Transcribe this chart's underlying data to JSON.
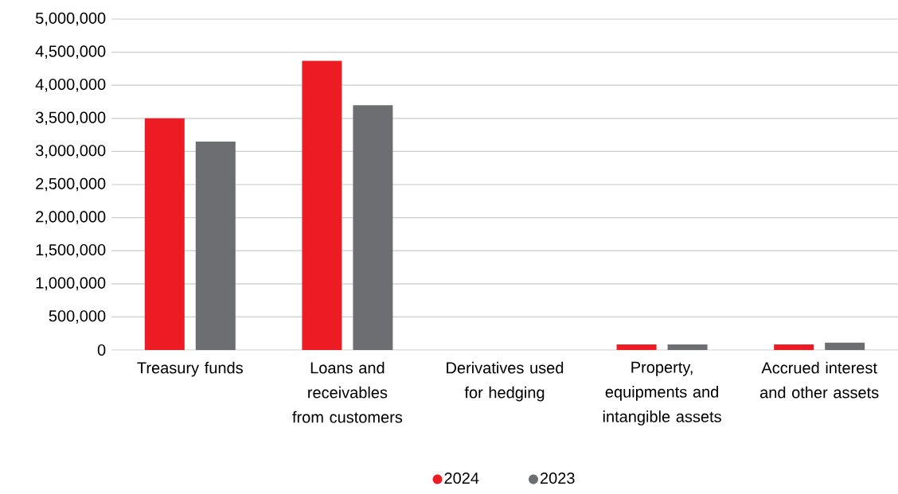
{
  "chart_data": {
    "type": "bar",
    "categories": [
      "Treasury funds",
      "Loans and receivables from customers",
      "Derivatives used for hedging",
      "Property, equipments and intangible assets",
      "Accrued interest and other assets"
    ],
    "series": [
      {
        "name": "2024",
        "color": "#ed1c24",
        "values": [
          3500000,
          4370000,
          0,
          85000,
          85000
        ]
      },
      {
        "name": "2023",
        "color": "#6d6e71",
        "values": [
          3150000,
          3700000,
          0,
          85000,
          110000
        ]
      }
    ],
    "ylim": [
      0,
      5000000
    ],
    "yticks": [
      {
        "value": 0,
        "label": "0"
      },
      {
        "value": 500000,
        "label": "500,000"
      },
      {
        "value": 1000000,
        "label": "1,000,000"
      },
      {
        "value": 1500000,
        "label": "1,500,000"
      },
      {
        "value": 2000000,
        "label": "2,000,000"
      },
      {
        "value": 2500000,
        "label": "2,500,000"
      },
      {
        "value": 3000000,
        "label": "3,000,000"
      },
      {
        "value": 3500000,
        "label": "3,500,000"
      },
      {
        "value": 4000000,
        "label": "4,000,000"
      },
      {
        "value": 4500000,
        "label": "4,500,000"
      },
      {
        "value": 5000000,
        "label": "5,000,000"
      }
    ],
    "grid": "y",
    "legend": "bottom"
  }
}
